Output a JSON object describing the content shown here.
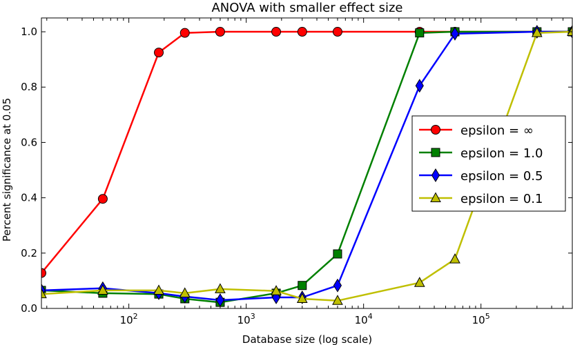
{
  "chart_data": {
    "type": "line",
    "title": "ANOVA with smaller effect size",
    "xlabel": "Database size (log scale)",
    "ylabel": "Percent significance at 0.05",
    "xscale": "log",
    "xlim": [
      18,
      600000
    ],
    "ylim": [
      0.0,
      1.05
    ],
    "yticks": [
      0.0,
      0.2,
      0.4,
      0.6,
      0.8,
      1.0
    ],
    "ytick_labels": [
      "0.0",
      "0.2",
      "0.4",
      "0.6",
      "0.8",
      "1.0"
    ],
    "xticks": [
      100,
      1000,
      10000,
      100000
    ],
    "xtick_labels": [
      {
        "base": "10",
        "exp": "2"
      },
      {
        "base": "10",
        "exp": "3"
      },
      {
        "base": "10",
        "exp": "4"
      },
      {
        "base": "10",
        "exp": "5"
      }
    ],
    "legend_position": "center-right",
    "series": [
      {
        "name": "epsilon = ∞",
        "color": "#ff0000",
        "marker": "circle",
        "x": [
          18,
          60,
          180,
          300,
          600,
          1800,
          3000,
          6000,
          30000,
          60000,
          300000,
          600000
        ],
        "y": [
          0.128,
          0.396,
          0.925,
          0.996,
          1.0,
          1.0,
          1.0,
          1.0,
          1.0,
          1.0,
          1.0,
          1.0
        ]
      },
      {
        "name": "epsilon = 1.0",
        "color": "#008000",
        "marker": "square",
        "x": [
          18,
          60,
          180,
          300,
          600,
          1800,
          3000,
          6000,
          30000,
          60000,
          300000,
          600000
        ],
        "y": [
          0.065,
          0.055,
          0.052,
          0.035,
          0.022,
          0.055,
          0.083,
          0.197,
          0.996,
          1.0,
          1.0,
          1.0
        ]
      },
      {
        "name": "epsilon = 0.5",
        "color": "#0000ff",
        "marker": "diamond",
        "x": [
          18,
          60,
          180,
          300,
          600,
          1800,
          3000,
          6000,
          30000,
          60000,
          300000,
          600000
        ],
        "y": [
          0.065,
          0.073,
          0.055,
          0.043,
          0.03,
          0.04,
          0.04,
          0.083,
          0.805,
          0.993,
          1.0,
          1.0
        ]
      },
      {
        "name": "epsilon = 0.1",
        "color": "#bfbf00",
        "marker": "triangle",
        "x": [
          18,
          60,
          180,
          300,
          600,
          1800,
          3000,
          6000,
          30000,
          60000,
          300000,
          600000
        ],
        "y": [
          0.052,
          0.065,
          0.065,
          0.055,
          0.07,
          0.063,
          0.035,
          0.028,
          0.093,
          0.178,
          0.996,
          1.0
        ]
      }
    ]
  }
}
